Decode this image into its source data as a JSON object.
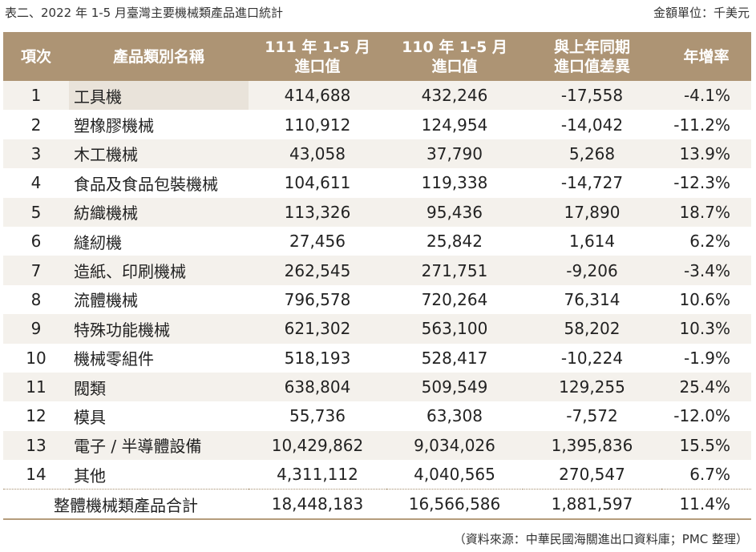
{
  "caption": {
    "title": "表二、2022 年 1-5 月臺灣主要機械類產品進口統計",
    "unit": "金額單位：千美元"
  },
  "header": {
    "no": "項次",
    "name": "產品類別名稱",
    "cur_line1": "111 年 1-5 月",
    "cur_line2": "進口值",
    "prev_line1": "110 年 1-5 月",
    "prev_line2": "進口值",
    "diff_line1": "與上年同期",
    "diff_line2": "進口值差異",
    "rate": "年增率"
  },
  "rows": [
    {
      "no": "1",
      "name": "工具機",
      "cur": "414,688",
      "prev": "432,246",
      "diff": "-17,558",
      "rate": "-4.1%"
    },
    {
      "no": "2",
      "name": "塑橡膠機械",
      "cur": "110,912",
      "prev": "124,954",
      "diff": "-14,042",
      "rate": "-11.2%"
    },
    {
      "no": "3",
      "name": "木工機械",
      "cur": "43,058",
      "prev": "37,790",
      "diff": "5,268",
      "rate": "13.9%"
    },
    {
      "no": "4",
      "name": "食品及食品包裝機械",
      "cur": "104,611",
      "prev": "119,338",
      "diff": "-14,727",
      "rate": "-12.3%"
    },
    {
      "no": "5",
      "name": "紡織機械",
      "cur": "113,326",
      "prev": "95,436",
      "diff": "17,890",
      "rate": "18.7%"
    },
    {
      "no": "6",
      "name": "縫紉機",
      "cur": "27,456",
      "prev": "25,842",
      "diff": "1,614",
      "rate": "6.2%"
    },
    {
      "no": "7",
      "name": "造紙、印刷機械",
      "cur": "262,545",
      "prev": "271,751",
      "diff": "-9,206",
      "rate": "-3.4%"
    },
    {
      "no": "8",
      "name": "流體機械",
      "cur": "796,578",
      "prev": "720,264",
      "diff": "76,314",
      "rate": "10.6%"
    },
    {
      "no": "9",
      "name": "特殊功能機械",
      "cur": "621,302",
      "prev": "563,100",
      "diff": "58,202",
      "rate": "10.3%"
    },
    {
      "no": "10",
      "name": "機械零組件",
      "cur": "518,193",
      "prev": "528,417",
      "diff": "-10,224",
      "rate": "-1.9%"
    },
    {
      "no": "11",
      "name": "閥類",
      "cur": "638,804",
      "prev": "509,549",
      "diff": "129,255",
      "rate": "25.4%"
    },
    {
      "no": "12",
      "name": "模具",
      "cur": "55,736",
      "prev": "63,308",
      "diff": "-7,572",
      "rate": "-12.0%"
    },
    {
      "no": "13",
      "name": "電子 / 半導體設備",
      "cur": "10,429,862",
      "prev": "9,034,026",
      "diff": "1,395,836",
      "rate": "15.5%"
    },
    {
      "no": "14",
      "name": "其他",
      "cur": "4,311,112",
      "prev": "4,040,565",
      "diff": "270,547",
      "rate": "6.7%"
    }
  ],
  "total": {
    "label": "整體機械類產品合計",
    "cur": "18,448,183",
    "prev": "16,566,586",
    "diff": "1,881,597",
    "rate": "11.4%"
  },
  "source": "（資料來源：中華民國海關進出口資料庫；PMC 整理）"
}
